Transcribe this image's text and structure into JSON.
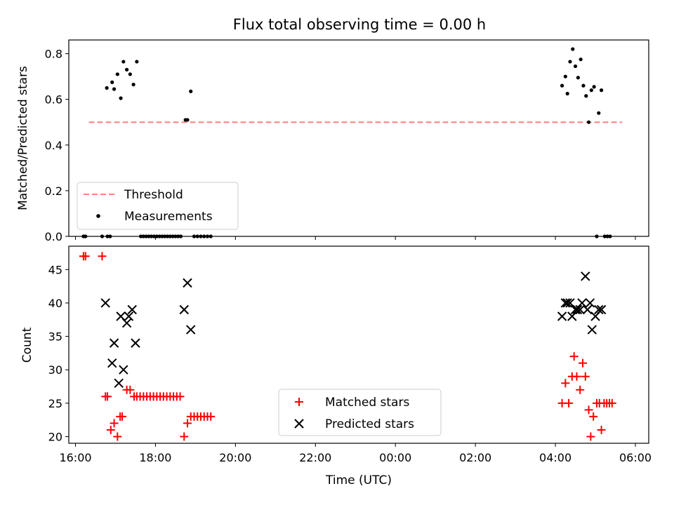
{
  "figure": {
    "title": "Flux total observing time = 0.00 h"
  },
  "colors": {
    "threshold": "#ff8080",
    "measurements": "#000000",
    "matched": "#ff0000",
    "predicted": "#000000"
  },
  "chart_data": [
    {
      "type": "scatter",
      "panel": "top",
      "xlabel": "",
      "ylabel": "Matched/Predicted stars",
      "xlim": [
        "15:50",
        "06:20"
      ],
      "ylim": [
        0,
        0.86
      ],
      "yticks": [
        0.0,
        0.2,
        0.4,
        0.6,
        0.8
      ],
      "ytick_labels": [
        "0.0",
        "0.2",
        "0.4",
        "0.6",
        "0.8"
      ],
      "legend": {
        "placement": "lower-left",
        "entries": [
          "Threshold",
          "Measurements"
        ]
      },
      "threshold": {
        "name": "Threshold",
        "y": 0.5,
        "x_range": [
          "16:20",
          "05:40"
        ],
        "style": "dashed"
      },
      "series": [
        {
          "name": "Measurements",
          "marker": "dot",
          "points": [
            {
              "x": "16:12",
              "y": 0.0
            },
            {
              "x": "16:15",
              "y": 0.0
            },
            {
              "x": "16:40",
              "y": 0.0
            },
            {
              "x": "16:48",
              "y": 0.0
            },
            {
              "x": "16:52",
              "y": 0.0
            },
            {
              "x": "16:47",
              "y": 0.65
            },
            {
              "x": "16:55",
              "y": 0.675
            },
            {
              "x": "16:58",
              "y": 0.645
            },
            {
              "x": "17:03",
              "y": 0.71
            },
            {
              "x": "17:08",
              "y": 0.605
            },
            {
              "x": "17:12",
              "y": 0.765
            },
            {
              "x": "17:17",
              "y": 0.73
            },
            {
              "x": "17:22",
              "y": 0.71
            },
            {
              "x": "17:27",
              "y": 0.665
            },
            {
              "x": "17:32",
              "y": 0.765
            },
            {
              "x": "17:38",
              "y": 0.0
            },
            {
              "x": "17:42",
              "y": 0.0
            },
            {
              "x": "17:46",
              "y": 0.0
            },
            {
              "x": "17:50",
              "y": 0.0
            },
            {
              "x": "17:54",
              "y": 0.0
            },
            {
              "x": "17:58",
              "y": 0.0
            },
            {
              "x": "18:02",
              "y": 0.0
            },
            {
              "x": "18:06",
              "y": 0.0
            },
            {
              "x": "18:10",
              "y": 0.0
            },
            {
              "x": "18:14",
              "y": 0.0
            },
            {
              "x": "18:18",
              "y": 0.0
            },
            {
              "x": "18:22",
              "y": 0.0
            },
            {
              "x": "18:26",
              "y": 0.0
            },
            {
              "x": "18:30",
              "y": 0.0
            },
            {
              "x": "18:34",
              "y": 0.0
            },
            {
              "x": "18:38",
              "y": 0.0
            },
            {
              "x": "18:45",
              "y": 0.51
            },
            {
              "x": "18:48",
              "y": 0.51
            },
            {
              "x": "18:53",
              "y": 0.635
            },
            {
              "x": "18:58",
              "y": 0.0
            },
            {
              "x": "19:03",
              "y": 0.0
            },
            {
              "x": "19:08",
              "y": 0.0
            },
            {
              "x": "19:13",
              "y": 0.0
            },
            {
              "x": "19:18",
              "y": 0.0
            },
            {
              "x": "19:23",
              "y": 0.0
            },
            {
              "x": "04:10",
              "y": 0.66
            },
            {
              "x": "04:15",
              "y": 0.7
            },
            {
              "x": "04:18",
              "y": 0.625
            },
            {
              "x": "04:22",
              "y": 0.765
            },
            {
              "x": "04:26",
              "y": 0.82
            },
            {
              "x": "04:30",
              "y": 0.745
            },
            {
              "x": "04:34",
              "y": 0.695
            },
            {
              "x": "04:38",
              "y": 0.775
            },
            {
              "x": "04:42",
              "y": 0.66
            },
            {
              "x": "04:46",
              "y": 0.615
            },
            {
              "x": "04:50",
              "y": 0.5
            },
            {
              "x": "04:54",
              "y": 0.64
            },
            {
              "x": "04:58",
              "y": 0.655
            },
            {
              "x": "05:02",
              "y": 0.0
            },
            {
              "x": "05:05",
              "y": 0.54
            },
            {
              "x": "05:09",
              "y": 0.64
            },
            {
              "x": "05:14",
              "y": 0.0
            },
            {
              "x": "05:18",
              "y": 0.0
            },
            {
              "x": "05:22",
              "y": 0.0
            }
          ]
        }
      ]
    },
    {
      "type": "scatter",
      "panel": "bottom",
      "xlabel": "Time (UTC)",
      "ylabel": "Count",
      "xlim": [
        "15:50",
        "06:20"
      ],
      "ylim": [
        19,
        48.5
      ],
      "xticks": [
        "16:00",
        "18:00",
        "20:00",
        "22:00",
        "00:00",
        "02:00",
        "04:00",
        "06:00"
      ],
      "yticks": [
        20,
        25,
        30,
        35,
        40,
        45
      ],
      "ytick_labels": [
        "20",
        "25",
        "30",
        "35",
        "40",
        "45"
      ],
      "legend": {
        "placement": "lower-center",
        "entries": [
          "Matched stars",
          "Predicted stars"
        ]
      },
      "series": [
        {
          "name": "Matched stars",
          "marker": "plus",
          "points": [
            {
              "x": "16:12",
              "y": 47
            },
            {
              "x": "16:15",
              "y": 47
            },
            {
              "x": "16:40",
              "y": 47
            },
            {
              "x": "16:45",
              "y": 26
            },
            {
              "x": "16:48",
              "y": 26
            },
            {
              "x": "16:53",
              "y": 21
            },
            {
              "x": "16:58",
              "y": 22
            },
            {
              "x": "17:03",
              "y": 20
            },
            {
              "x": "17:07",
              "y": 23
            },
            {
              "x": "17:10",
              "y": 23
            },
            {
              "x": "17:17",
              "y": 27
            },
            {
              "x": "17:22",
              "y": 27
            },
            {
              "x": "17:28",
              "y": 26
            },
            {
              "x": "17:32",
              "y": 26
            },
            {
              "x": "17:37",
              "y": 26
            },
            {
              "x": "17:42",
              "y": 26
            },
            {
              "x": "17:47",
              "y": 26
            },
            {
              "x": "17:52",
              "y": 26
            },
            {
              "x": "17:57",
              "y": 26
            },
            {
              "x": "18:02",
              "y": 26
            },
            {
              "x": "18:07",
              "y": 26
            },
            {
              "x": "18:12",
              "y": 26
            },
            {
              "x": "18:17",
              "y": 26
            },
            {
              "x": "18:22",
              "y": 26
            },
            {
              "x": "18:27",
              "y": 26
            },
            {
              "x": "18:32",
              "y": 26
            },
            {
              "x": "18:37",
              "y": 26
            },
            {
              "x": "18:43",
              "y": 20
            },
            {
              "x": "18:48",
              "y": 22
            },
            {
              "x": "18:53",
              "y": 23
            },
            {
              "x": "18:58",
              "y": 23
            },
            {
              "x": "19:03",
              "y": 23
            },
            {
              "x": "19:08",
              "y": 23
            },
            {
              "x": "19:13",
              "y": 23
            },
            {
              "x": "19:18",
              "y": 23
            },
            {
              "x": "19:23",
              "y": 23
            },
            {
              "x": "04:10",
              "y": 25
            },
            {
              "x": "04:15",
              "y": 28
            },
            {
              "x": "04:20",
              "y": 25
            },
            {
              "x": "04:25",
              "y": 29
            },
            {
              "x": "04:28",
              "y": 32
            },
            {
              "x": "04:32",
              "y": 29
            },
            {
              "x": "04:37",
              "y": 27
            },
            {
              "x": "04:41",
              "y": 31
            },
            {
              "x": "04:45",
              "y": 29
            },
            {
              "x": "04:50",
              "y": 24
            },
            {
              "x": "04:53",
              "y": 20
            },
            {
              "x": "04:57",
              "y": 23
            },
            {
              "x": "05:02",
              "y": 25
            },
            {
              "x": "05:06",
              "y": 25
            },
            {
              "x": "05:09",
              "y": 21
            },
            {
              "x": "05:13",
              "y": 25
            },
            {
              "x": "05:17",
              "y": 25
            },
            {
              "x": "05:21",
              "y": 25
            },
            {
              "x": "05:25",
              "y": 25
            }
          ]
        },
        {
          "name": "Predicted stars",
          "marker": "x",
          "points": [
            {
              "x": "16:45",
              "y": 40
            },
            {
              "x": "16:55",
              "y": 31
            },
            {
              "x": "16:58",
              "y": 34
            },
            {
              "x": "17:05",
              "y": 28
            },
            {
              "x": "17:08",
              "y": 38
            },
            {
              "x": "17:12",
              "y": 30
            },
            {
              "x": "17:17",
              "y": 37
            },
            {
              "x": "17:20",
              "y": 38
            },
            {
              "x": "17:25",
              "y": 39
            },
            {
              "x": "17:30",
              "y": 34
            },
            {
              "x": "18:43",
              "y": 39
            },
            {
              "x": "18:48",
              "y": 43
            },
            {
              "x": "18:53",
              "y": 36
            },
            {
              "x": "04:10",
              "y": 38
            },
            {
              "x": "04:15",
              "y": 40
            },
            {
              "x": "04:18",
              "y": 40
            },
            {
              "x": "04:22",
              "y": 40
            },
            {
              "x": "04:25",
              "y": 38
            },
            {
              "x": "04:30",
              "y": 39
            },
            {
              "x": "04:33",
              "y": 39
            },
            {
              "x": "04:37",
              "y": 39
            },
            {
              "x": "04:40",
              "y": 40
            },
            {
              "x": "04:45",
              "y": 44
            },
            {
              "x": "04:48",
              "y": 39
            },
            {
              "x": "04:52",
              "y": 40
            },
            {
              "x": "04:55",
              "y": 36
            },
            {
              "x": "05:00",
              "y": 38
            },
            {
              "x": "05:05",
              "y": 39
            },
            {
              "x": "05:09",
              "y": 39
            }
          ]
        }
      ]
    }
  ]
}
